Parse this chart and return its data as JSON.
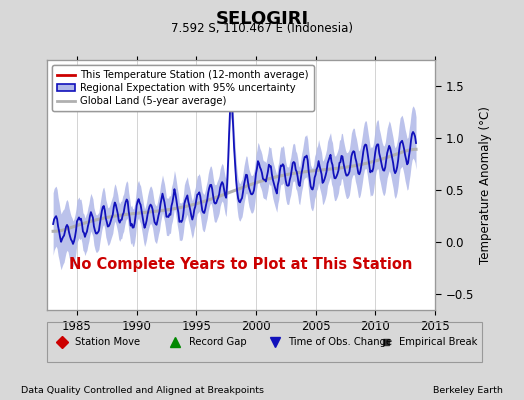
{
  "title": "SELOGIRI",
  "subtitle": "7.592 S, 110.467 E (Indonesia)",
  "ylabel": "Temperature Anomaly (°C)",
  "xlim": [
    1982.5,
    2015.0
  ],
  "ylim": [
    -0.65,
    1.75
  ],
  "yticks": [
    -0.5,
    0.0,
    0.5,
    1.0,
    1.5
  ],
  "xticks": [
    1985,
    1990,
    1995,
    2000,
    2005,
    2010,
    2015
  ],
  "bg_color": "#d8d8d8",
  "plot_bg_color": "#ffffff",
  "regional_line_color": "#1111bb",
  "regional_fill_color": "#b0b8e8",
  "station_line_color": "#cc0000",
  "global_line_color": "#b0b0b0",
  "no_data_text": "No Complete Years to Plot at This Station",
  "no_data_color": "#cc0000",
  "footer_left": "Data Quality Controlled and Aligned at Breakpoints",
  "footer_right": "Berkeley Earth",
  "legend1": [
    {
      "label": "This Temperature Station (12-month average)",
      "color": "#cc0000",
      "lw": 2
    },
    {
      "label": "Regional Expectation with 95% uncertainty",
      "color": "#1111bb",
      "lw": 2,
      "fill": "#b0b8e8"
    },
    {
      "label": "Global Land (5-year average)",
      "color": "#b0b0b0",
      "lw": 2
    }
  ],
  "legend2": [
    {
      "label": "Station Move",
      "marker": "D",
      "color": "#cc0000",
      "ms": 6
    },
    {
      "label": "Record Gap",
      "marker": "^",
      "color": "#008800",
      "ms": 7
    },
    {
      "label": "Time of Obs. Change",
      "marker": "v",
      "color": "#1111bb",
      "ms": 7
    },
    {
      "label": "Empirical Break",
      "marker": "s",
      "color": "#333333",
      "ms": 5
    }
  ]
}
